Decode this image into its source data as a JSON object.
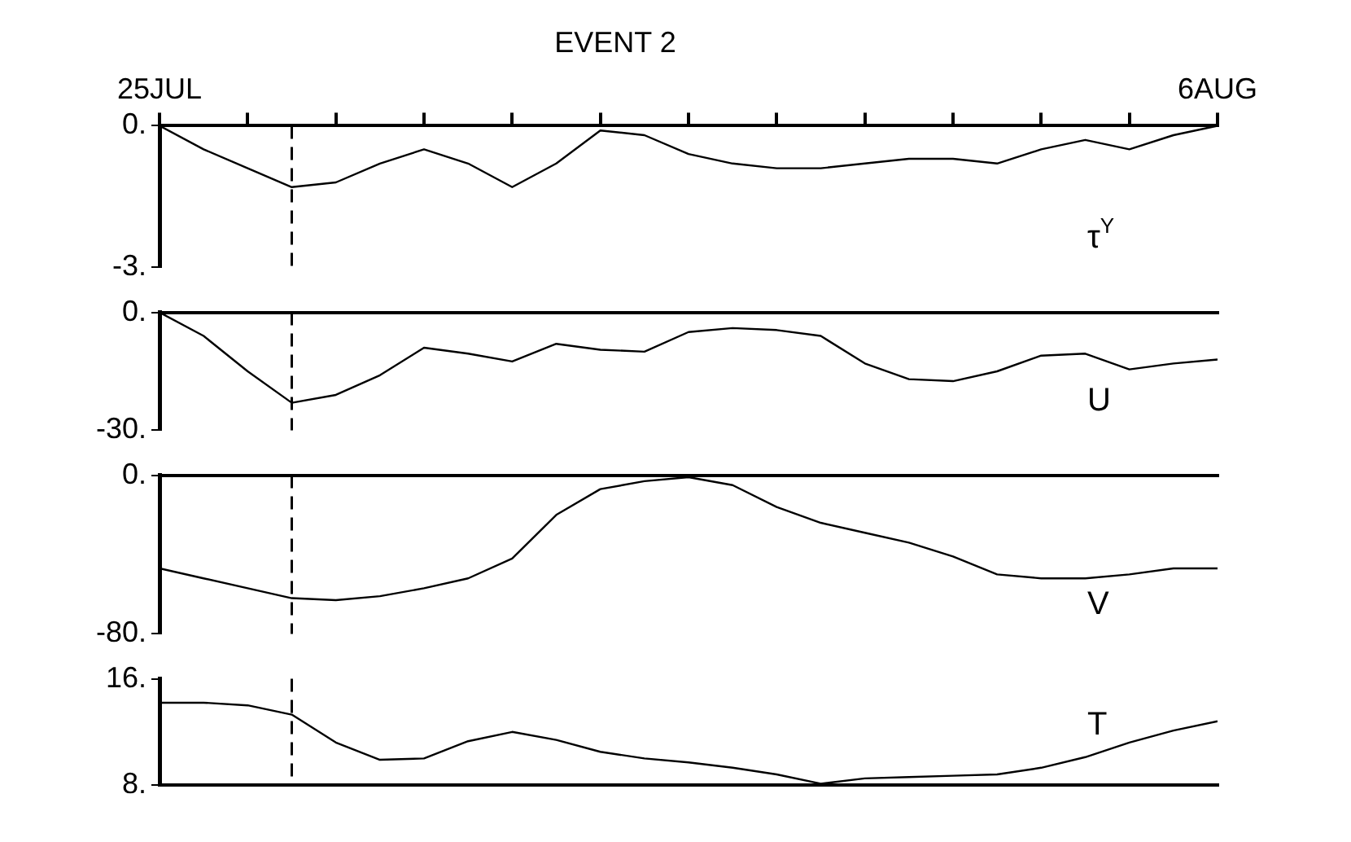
{
  "chart_data": [
    {
      "type": "line",
      "title": "EVENT 2",
      "x": [
        "--07-25",
        "--07-25T12:00",
        "--07-26",
        "--07-26T12:00",
        "--07-27",
        "--07-27T12:00",
        "--07-28",
        "--07-28T12:00",
        "--07-29",
        "--07-29T12:00",
        "--07-30",
        "--07-30T12:00",
        "--07-31",
        "--07-31T12:00",
        "--08-01",
        "--08-01T12:00",
        "--08-02",
        "--08-02T12:00",
        "--08-03",
        "--08-03T12:00",
        "--08-04",
        "--08-04T12:00",
        "--08-05",
        "--08-05T12:00",
        "--08-06"
      ],
      "series": [
        {
          "name": "τ$^{Y}$",
          "color": "#000000",
          "values": [
            0.0,
            -0.5,
            -0.9,
            -1.3,
            -1.2,
            -0.8,
            -0.5,
            -0.8,
            -1.3,
            -0.8,
            -0.1,
            -0.2,
            -0.6,
            -0.8,
            -0.9,
            -0.9,
            -0.8,
            -0.7,
            -0.7,
            -0.8,
            -0.5,
            -0.3,
            -0.5,
            -0.2,
            0.0
          ]
        }
      ],
      "xlim": [
        "--07-25",
        "--08-06"
      ],
      "xticks": [
        {
          "value": "--07-25",
          "label": "25JUL"
        },
        {
          "value": "--07-26",
          "label": null
        },
        {
          "value": "--07-27",
          "label": null
        },
        {
          "value": "--07-28",
          "label": null
        },
        {
          "value": "--07-29",
          "label": null
        },
        {
          "value": "--07-30",
          "label": null
        },
        {
          "value": "--07-31",
          "label": null
        },
        {
          "value": "--08-01",
          "label": null
        },
        {
          "value": "--08-02",
          "label": null
        },
        {
          "value": "--08-03",
          "label": null
        },
        {
          "value": "--08-04",
          "label": null
        },
        {
          "value": "--08-05",
          "label": null
        },
        {
          "value": "--08-06",
          "label": "6AUG"
        }
      ],
      "ylim": [
        -3,
        0
      ],
      "yticks": [
        {
          "value": 0,
          "label": "0."
        },
        {
          "value": -3,
          "label": "-3."
        }
      ],
      "ref_lines": [
        {
          "axis": "x",
          "value": "--07-26T12:00",
          "line_style": "dashed"
        }
      ]
    },
    {
      "type": "line",
      "x": [
        "--07-25",
        "--07-25T12:00",
        "--07-26",
        "--07-26T12:00",
        "--07-27",
        "--07-27T12:00",
        "--07-28",
        "--07-28T12:00",
        "--07-29",
        "--07-29T12:00",
        "--07-30",
        "--07-30T12:00",
        "--07-31",
        "--07-31T12:00",
        "--08-01",
        "--08-01T12:00",
        "--08-02",
        "--08-02T12:00",
        "--08-03",
        "--08-03T12:00",
        "--08-04",
        "--08-04T12:00",
        "--08-05",
        "--08-05T12:00",
        "--08-06"
      ],
      "series": [
        {
          "name": "U",
          "color": "#000000",
          "values": [
            0,
            -6,
            -15,
            -23,
            -21,
            -16,
            -9,
            -10.5,
            -12.5,
            -8,
            -9.5,
            -10,
            -5,
            -4,
            -4.5,
            -6,
            -13,
            -17,
            -17.5,
            -15,
            -11,
            -10.5,
            -14.5,
            -13,
            -12
          ]
        }
      ],
      "xlim": [
        "--07-25",
        "--08-06"
      ],
      "ylim": [
        -30,
        0
      ],
      "yticks": [
        {
          "value": 0,
          "label": "0."
        },
        {
          "value": -30,
          "label": "-30."
        }
      ],
      "tick_labels": "y",
      "ref_lines": [
        {
          "axis": "x",
          "value": "--07-26T12:00",
          "line_style": "dashed"
        }
      ]
    },
    {
      "type": "line",
      "x": [
        "--07-25",
        "--07-25T12:00",
        "--07-26",
        "--07-26T12:00",
        "--07-27",
        "--07-27T12:00",
        "--07-28",
        "--07-28T12:00",
        "--07-29",
        "--07-29T12:00",
        "--07-30",
        "--07-30T12:00",
        "--07-31",
        "--07-31T12:00",
        "--08-01",
        "--08-01T12:00",
        "--08-02",
        "--08-02T12:00",
        "--08-03",
        "--08-03T12:00",
        "--08-04",
        "--08-04T12:00",
        "--08-05",
        "--08-05T12:00",
        "--08-06"
      ],
      "series": [
        {
          "name": "V",
          "color": "#000000",
          "values": [
            -47,
            -52,
            -57,
            -62,
            -63,
            -61,
            -57,
            -52,
            -42,
            -20,
            -7,
            -3,
            -1,
            -5,
            -16,
            -24,
            -29,
            -34,
            -41,
            -50,
            -52,
            -52,
            -50,
            -47,
            -47
          ]
        }
      ],
      "xlim": [
        "--07-25",
        "--08-06"
      ],
      "ylim": [
        -80,
        0
      ],
      "yticks": [
        {
          "value": 0,
          "label": "0."
        },
        {
          "value": -80,
          "label": "-80."
        }
      ],
      "tick_labels": "y",
      "ref_lines": [
        {
          "axis": "x",
          "value": "--07-26T12:00",
          "line_style": "dashed"
        }
      ]
    },
    {
      "type": "line",
      "x": [
        "--07-25",
        "--07-25T12:00",
        "--07-26",
        "--07-26T12:00",
        "--07-27",
        "--07-27T12:00",
        "--07-28",
        "--07-28T12:00",
        "--07-29",
        "--07-29T12:00",
        "--07-30",
        "--07-30T12:00",
        "--07-31",
        "--07-31T12:00",
        "--08-01",
        "--08-01T12:00",
        "--08-02",
        "--08-02T12:00",
        "--08-03",
        "--08-03T12:00",
        "--08-04",
        "--08-04T12:00",
        "--08-05",
        "--08-05T12:00",
        "--08-06"
      ],
      "series": [
        {
          "name": "T",
          "color": "#000000",
          "values": [
            14.2,
            14.2,
            14.0,
            13.3,
            11.2,
            9.9,
            10.0,
            11.3,
            12.0,
            11.4,
            10.5,
            10.0,
            9.7,
            9.3,
            8.8,
            8.1,
            8.5,
            8.6,
            8.7,
            8.8,
            9.3,
            10.1,
            11.2,
            12.1,
            12.8
          ]
        }
      ],
      "xlim": [
        "--07-25",
        "--08-06"
      ],
      "ylim": [
        8,
        16
      ],
      "yticks": [
        {
          "value": 16,
          "label": "16."
        },
        {
          "value": 8,
          "label": "8."
        }
      ],
      "tick_labels": "y",
      "ref_lines": [
        {
          "axis": "x",
          "value": "--07-26T12:00",
          "line_style": "dashed"
        }
      ]
    }
  ]
}
